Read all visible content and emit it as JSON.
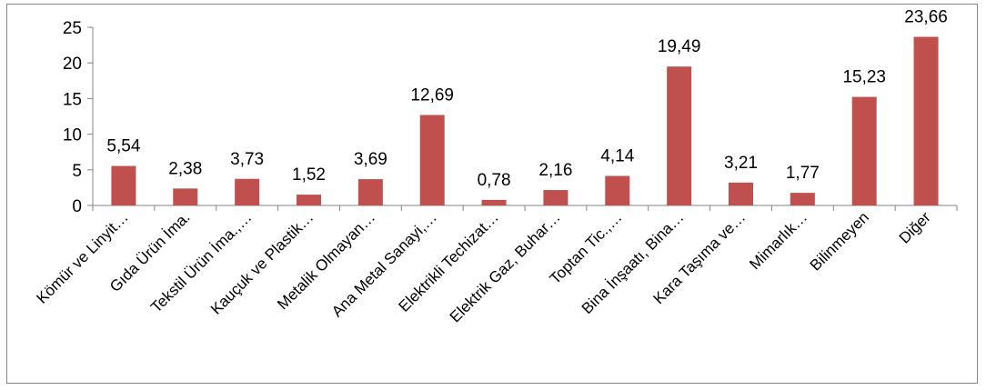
{
  "chart_data": {
    "type": "bar",
    "categories": [
      "Kömür ve Linyit…",
      "Gıda Ürün İma.",
      "Tekstil Ürün İma.,…",
      "Kauçuk ve Plastik…",
      "Metalik Olmayan…",
      "Ana Metal Sanayi,…",
      "Elektrikli Techizat…",
      "Elektrik Gaz, Buhar…",
      "Toptan Tic.,…",
      "Bina İnşaatı, Bina…",
      "Kara Taşıma ve…",
      "Mimarlık…",
      "Bilinmeyen",
      "Diğer"
    ],
    "values": [
      5.54,
      2.38,
      3.73,
      1.52,
      3.69,
      12.69,
      0.78,
      2.16,
      4.14,
      19.49,
      3.21,
      1.77,
      15.23,
      23.66
    ],
    "value_labels": [
      "5,54",
      "2,38",
      "3,73",
      "1,52",
      "3,69",
      "12,69",
      "0,78",
      "2,16",
      "4,14",
      "19,49",
      "3,21",
      "1,77",
      "15,23",
      "23,66"
    ],
    "y_ticks": [
      0,
      5,
      10,
      15,
      20,
      25
    ],
    "ylim": [
      0,
      25
    ],
    "bar_color": "#c0504d",
    "axis_color": "#868686",
    "grid": false,
    "legend": "none",
    "title": "",
    "xlabel": "",
    "ylabel": ""
  }
}
